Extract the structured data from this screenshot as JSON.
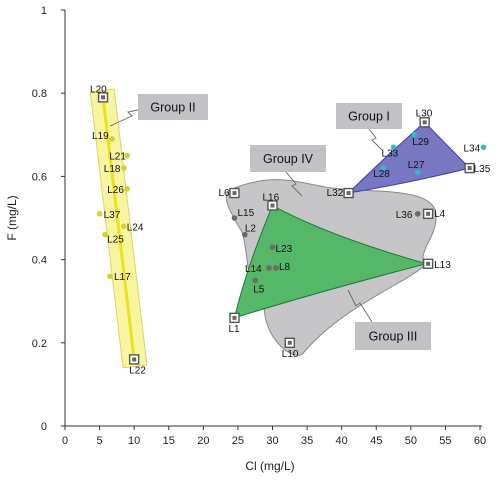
{
  "chart_data": {
    "type": "scatter",
    "title": "",
    "xlabel": "Cl (mg/L)",
    "ylabel": "F (mg/L)",
    "xlim": [
      0,
      60
    ],
    "ylim": [
      0,
      1
    ],
    "xticks": [
      "0",
      "5",
      "10",
      "15",
      "20",
      "25",
      "30",
      "35",
      "40",
      "45",
      "50",
      "55",
      "60"
    ],
    "yticks": [
      "0",
      "0.2",
      "0.4",
      "0.6",
      "0.8",
      "1"
    ],
    "grid": false,
    "legend": "none",
    "points": [
      {
        "label": "L20",
        "x": 5.5,
        "y": 0.79,
        "marker": "square"
      },
      {
        "label": "L19",
        "x": 6.8,
        "y": 0.69,
        "marker": "dot"
      },
      {
        "label": "L21",
        "x": 9.0,
        "y": 0.65,
        "marker": "dot"
      },
      {
        "label": "L18",
        "x": 8.5,
        "y": 0.62,
        "marker": "dot"
      },
      {
        "label": "L26",
        "x": 9.0,
        "y": 0.57,
        "marker": "dot"
      },
      {
        "label": "L37",
        "x": 5.0,
        "y": 0.51,
        "marker": "dot"
      },
      {
        "label": "L24",
        "x": 8.5,
        "y": 0.48,
        "marker": "dot"
      },
      {
        "label": "L25",
        "x": 5.8,
        "y": 0.46,
        "marker": "dot"
      },
      {
        "label": "L17",
        "x": 6.5,
        "y": 0.36,
        "marker": "dot"
      },
      {
        "label": "L22",
        "x": 10.0,
        "y": 0.16,
        "marker": "square"
      },
      {
        "label": "L30",
        "x": 52.0,
        "y": 0.73,
        "marker": "square"
      },
      {
        "label": "L29",
        "x": 50.5,
        "y": 0.7,
        "marker": "dot"
      },
      {
        "label": "L34",
        "x": 60.5,
        "y": 0.67,
        "marker": "dot"
      },
      {
        "label": "L33",
        "x": 47.5,
        "y": 0.67,
        "marker": "dot"
      },
      {
        "label": "L27",
        "x": 51.0,
        "y": 0.61,
        "marker": "dot"
      },
      {
        "label": "L35",
        "x": 58.5,
        "y": 0.62,
        "marker": "square"
      },
      {
        "label": "L28",
        "x": 46.0,
        "y": 0.62,
        "marker": "dot"
      },
      {
        "label": "L32",
        "x": 41.0,
        "y": 0.56,
        "marker": "square"
      },
      {
        "label": "L6",
        "x": 24.5,
        "y": 0.56,
        "marker": "square"
      },
      {
        "label": "L16",
        "x": 30.0,
        "y": 0.53,
        "marker": "square"
      },
      {
        "label": "L15",
        "x": 24.5,
        "y": 0.5,
        "marker": "dot"
      },
      {
        "label": "L2",
        "x": 26.0,
        "y": 0.46,
        "marker": "dot"
      },
      {
        "label": "L36",
        "x": 51.0,
        "y": 0.51,
        "marker": "dot"
      },
      {
        "label": "L4",
        "x": 52.5,
        "y": 0.51,
        "marker": "square"
      },
      {
        "label": "L23",
        "x": 30.0,
        "y": 0.43,
        "marker": "dot"
      },
      {
        "label": "L8",
        "x": 30.5,
        "y": 0.38,
        "marker": "dot"
      },
      {
        "label": "L14",
        "x": 29.5,
        "y": 0.38,
        "marker": "dot"
      },
      {
        "label": "L5",
        "x": 27.5,
        "y": 0.35,
        "marker": "dot"
      },
      {
        "label": "L13",
        "x": 52.5,
        "y": 0.39,
        "marker": "square"
      },
      {
        "label": "L1",
        "x": 24.5,
        "y": 0.26,
        "marker": "square"
      },
      {
        "label": "L10",
        "x": 32.5,
        "y": 0.2,
        "marker": "square"
      }
    ],
    "groups": [
      {
        "name": "Group I",
        "fill": "#7777c4",
        "stroke": "#3f3f99",
        "vertices": [
          "L32",
          "L30",
          "L35"
        ]
      },
      {
        "name": "Group II",
        "fill": "#f7f5a0",
        "stroke": "#d9d56a",
        "trend": [
          "L20",
          "L22"
        ]
      },
      {
        "name": "Group III",
        "fill": "#55b768",
        "stroke": "#1d7a35",
        "vertices": [
          "L16",
          "L13",
          "L1"
        ]
      },
      {
        "name": "Group IV",
        "fill": "#c3c3c6",
        "stroke": "#8a8a8e",
        "hull": true
      }
    ],
    "colors": {
      "dot_group1": "#35b9c9",
      "dot_default": "#6b6b6b",
      "dot_group2": "#d8cf2a",
      "trend_line": "#e9e21e"
    }
  }
}
